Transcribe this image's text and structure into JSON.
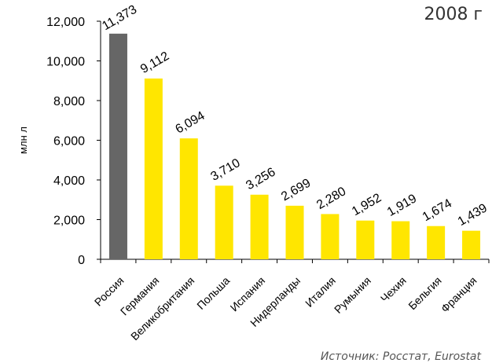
{
  "corner_label": "2008 г",
  "source": "Источник: Росстат, Eurostat",
  "colors": {
    "highlight": "#666666",
    "bar": "#FFE600",
    "axis": "#000000"
  },
  "chart_data": {
    "type": "bar",
    "ylabel": "млн л",
    "ylim": [
      0,
      12000
    ],
    "yticks": [
      0,
      2000,
      4000,
      6000,
      8000,
      10000,
      12000
    ],
    "ytick_labels": [
      "0",
      "2,000",
      "4,000",
      "6,000",
      "8,000",
      "10,000",
      "12,000"
    ],
    "categories": [
      "Россия",
      "Германия",
      "Великобритания",
      "Польша",
      "Испания",
      "Нидерланды",
      "Италия",
      "Румыния",
      "Чехия",
      "Бельгия",
      "Франция"
    ],
    "values": [
      11373,
      9112,
      6094,
      3710,
      3256,
      2699,
      2280,
      1952,
      1919,
      1674,
      1439
    ],
    "value_labels": [
      "11,373",
      "9,112",
      "6,094",
      "3,710",
      "3,256",
      "2,699",
      "2,280",
      "1,952",
      "1,919",
      "1,674",
      "1,439"
    ],
    "highlight_index": 0,
    "grid": false,
    "legend": "none"
  }
}
